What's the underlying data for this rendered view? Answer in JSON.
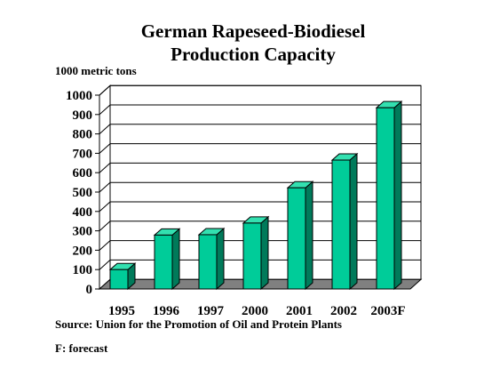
{
  "chart_data": {
    "type": "bar",
    "title_line1": "German Rapeseed-Biodiesel",
    "title_line2": "Production Capacity",
    "ylabel": "1000 metric tons",
    "xlabel": "",
    "categories": [
      "1995",
      "1996",
      "1997",
      "2000",
      "2001",
      "2002",
      "2003F"
    ],
    "values": [
      100,
      278,
      280,
      340,
      522,
      665,
      935
    ],
    "ylim": [
      0,
      1000
    ],
    "yticks": [
      0,
      100,
      200,
      300,
      400,
      500,
      600,
      700,
      800,
      900,
      1000
    ],
    "grid": true,
    "legend": "none",
    "bar_color": "#00cc99",
    "bar_side_color": "#007a5a",
    "bar_top_color": "#33e0b0"
  },
  "source": "Source: Union for the Promotion of Oil and Protein Plants",
  "note": "F: forecast"
}
